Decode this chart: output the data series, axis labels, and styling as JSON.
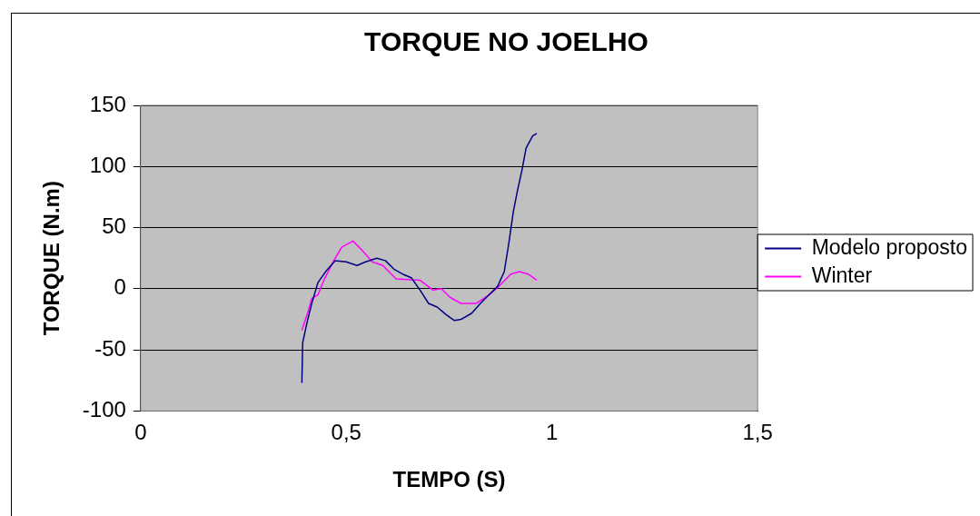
{
  "chart_data": {
    "type": "line",
    "title": "TORQUE NO JOELHO",
    "xlabel": "TEMPO (S)",
    "ylabel": "TORQUE (N.m)",
    "xlim": [
      0,
      1.5
    ],
    "xticks": [
      {
        "value": 0,
        "label": "0"
      },
      {
        "value": 0.5,
        "label": "0,5"
      },
      {
        "value": 1,
        "label": "1"
      },
      {
        "value": 1.5,
        "label": "1,5"
      }
    ],
    "ylim": [
      -100,
      150
    ],
    "yticks": [
      -100,
      -50,
      0,
      50,
      100,
      150
    ],
    "grid": "y",
    "legend": "right",
    "marker": "none",
    "line_style": "solid",
    "series": [
      {
        "name": "Modelo proposto",
        "color": "#000080",
        "x": [
          0.392,
          0.394,
          0.405,
          0.416,
          0.431,
          0.452,
          0.473,
          0.5,
          0.526,
          0.547,
          0.574,
          0.595,
          0.616,
          0.637,
          0.658,
          0.679,
          0.7,
          0.721,
          0.742,
          0.763,
          0.779,
          0.805,
          0.826,
          0.847,
          0.868,
          0.884,
          0.895,
          0.906,
          0.916,
          0.927,
          0.937,
          0.953,
          0.963
        ],
        "values": [
          -77,
          -44,
          -27,
          -12,
          5,
          15,
          23,
          22,
          19,
          22,
          25,
          23,
          16,
          12,
          9,
          -1,
          -12,
          -15,
          -21,
          -26,
          -25,
          -20,
          -12,
          -5,
          2,
          14,
          37,
          63,
          80,
          97,
          115,
          125,
          127
        ]
      },
      {
        "name": "Winter",
        "color": "#ff00ff",
        "x": [
          0.392,
          0.405,
          0.416,
          0.431,
          0.447,
          0.468,
          0.489,
          0.516,
          0.537,
          0.563,
          0.589,
          0.621,
          0.679,
          0.71,
          0.731,
          0.752,
          0.779,
          0.816,
          0.847,
          0.868,
          0.9,
          0.921,
          0.942,
          0.963
        ],
        "values": [
          -34,
          -21,
          -8,
          -5,
          8,
          22,
          34,
          39,
          32,
          22,
          19,
          8,
          7,
          -1,
          0,
          -7,
          -12,
          -12,
          -5,
          1,
          12,
          14,
          12,
          7
        ]
      }
    ]
  }
}
